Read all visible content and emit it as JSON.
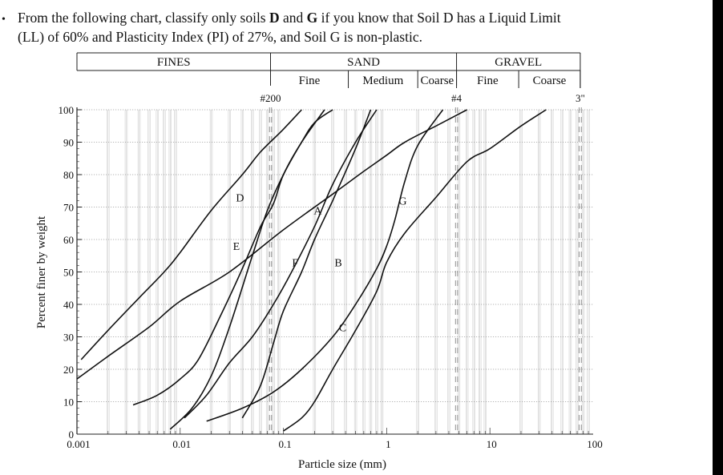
{
  "question": {
    "bullet": "•",
    "line1_a": "From the following chart, classify only soils ",
    "line1_b": "D",
    "line1_c": " and ",
    "line1_d": "G",
    "line1_e": " if you know that Soil D has a Liquid Limit",
    "line2": "(LL) of 60% and Plasticity Index (PI) of 27%, and Soil G is non-plastic."
  },
  "chart_data": {
    "type": "line",
    "xscale": "log",
    "xlim": [
      0.001,
      100
    ],
    "ylim": [
      0,
      100
    ],
    "xlabel": "Particle size (mm)",
    "ylabel": "Percent finer by weight",
    "xticks": [
      {
        "value": 0.001,
        "label": "0.001"
      },
      {
        "value": 0.01,
        "label": "0.01"
      },
      {
        "value": 0.1,
        "label": "0.1"
      },
      {
        "value": 1,
        "label": "1"
      },
      {
        "value": 10,
        "label": "10"
      },
      {
        "value": 100,
        "label": "100"
      }
    ],
    "yticks": [
      0,
      10,
      20,
      30,
      40,
      50,
      60,
      70,
      80,
      90,
      100
    ],
    "sieve_marks": [
      {
        "label": "#200",
        "value": 0.075
      },
      {
        "label": "#4",
        "value": 4.75
      },
      {
        "label": "3\"",
        "value": 75
      }
    ],
    "header": {
      "row1": [
        {
          "label": "FINES",
          "from": 0.001,
          "to": 0.075
        },
        {
          "label": "SAND",
          "from": 0.075,
          "to": 4.75
        },
        {
          "label": "GRAVEL",
          "from": 4.75,
          "to": 75
        }
      ],
      "row2": [
        {
          "label": "Fine",
          "from": 0.075,
          "to": 0.425
        },
        {
          "label": "Medium",
          "from": 0.425,
          "to": 2.0
        },
        {
          "label": "Coarse",
          "from": 2.0,
          "to": 4.75
        },
        {
          "label": "Fine",
          "from": 4.75,
          "to": 19
        },
        {
          "label": "Coarse",
          "from": 19,
          "to": 75
        }
      ]
    },
    "series": [
      {
        "name": "A",
        "label_at": [
          0.215,
          69
        ],
        "points": [
          [
            0.008,
            1.5
          ],
          [
            0.013,
            8
          ],
          [
            0.02,
            18
          ],
          [
            0.03,
            33
          ],
          [
            0.05,
            55
          ],
          [
            0.07,
            69
          ],
          [
            0.1,
            80
          ],
          [
            0.15,
            90
          ],
          [
            0.2,
            96
          ],
          [
            0.3,
            100
          ]
        ]
      },
      {
        "name": "B",
        "label_at": [
          0.34,
          53
        ],
        "points": [
          [
            0.011,
            5
          ],
          [
            0.018,
            12
          ],
          [
            0.03,
            22
          ],
          [
            0.05,
            30
          ],
          [
            0.08,
            40
          ],
          [
            0.12,
            50
          ],
          [
            0.2,
            64
          ],
          [
            0.3,
            77
          ],
          [
            0.5,
            90
          ],
          [
            0.8,
            100
          ]
        ]
      },
      {
        "name": "C",
        "label_at": [
          0.375,
          33
        ],
        "points": [
          [
            0.018,
            4
          ],
          [
            0.04,
            8
          ],
          [
            0.08,
            13
          ],
          [
            0.15,
            20
          ],
          [
            0.3,
            30
          ],
          [
            0.5,
            40
          ],
          [
            0.8,
            51
          ],
          [
            1.0,
            58
          ],
          [
            1.2,
            66
          ],
          [
            1.5,
            78
          ],
          [
            2.0,
            89
          ],
          [
            3.5,
            100
          ]
        ]
      },
      {
        "name": "D",
        "label_at": [
          0.038,
          73
        ],
        "points": [
          [
            0.0011,
            23
          ],
          [
            0.002,
            32
          ],
          [
            0.004,
            42
          ],
          [
            0.007,
            50
          ],
          [
            0.01,
            56
          ],
          [
            0.02,
            69
          ],
          [
            0.04,
            80
          ],
          [
            0.06,
            87
          ],
          [
            0.1,
            94
          ],
          [
            0.15,
            100
          ]
        ]
      },
      {
        "name": "E",
        "label_at": [
          0.035,
          58
        ],
        "points": [
          [
            0.0035,
            9
          ],
          [
            0.006,
            12
          ],
          [
            0.01,
            17
          ],
          [
            0.015,
            23
          ],
          [
            0.025,
            37
          ],
          [
            0.04,
            51
          ],
          [
            0.06,
            64
          ],
          [
            0.08,
            71
          ],
          [
            0.1,
            80
          ],
          [
            0.15,
            90
          ],
          [
            0.25,
            100
          ]
        ]
      },
      {
        "name": "F",
        "label_at": [
          0.13,
          53
        ],
        "points": [
          [
            0.04,
            5
          ],
          [
            0.06,
            15
          ],
          [
            0.08,
            28
          ],
          [
            0.1,
            38
          ],
          [
            0.15,
            50
          ],
          [
            0.2,
            60
          ],
          [
            0.3,
            72
          ],
          [
            0.5,
            88
          ],
          [
            0.7,
            100
          ]
        ]
      },
      {
        "name": "G",
        "label_at": [
          1.43,
          72
        ],
        "points": [
          [
            0.001,
            17
          ],
          [
            0.002,
            24
          ],
          [
            0.005,
            33
          ],
          [
            0.01,
            41
          ],
          [
            0.03,
            50
          ],
          [
            0.1,
            63
          ],
          [
            0.3,
            74
          ],
          [
            0.6,
            81
          ],
          [
            1.0,
            86
          ],
          [
            1.5,
            90
          ],
          [
            3.0,
            95
          ],
          [
            6.0,
            100
          ]
        ]
      },
      {
        "name": "",
        "points": [
          [
            0.1,
            1
          ],
          [
            0.15,
            5
          ],
          [
            0.2,
            10
          ],
          [
            0.3,
            20
          ],
          [
            0.5,
            32
          ],
          [
            0.8,
            44
          ],
          [
            1.0,
            53
          ],
          [
            1.5,
            62
          ],
          [
            3.0,
            73
          ],
          [
            6.0,
            84
          ],
          [
            10.0,
            88
          ],
          [
            20.0,
            95
          ],
          [
            35.0,
            100
          ]
        ]
      }
    ],
    "grid": true
  }
}
